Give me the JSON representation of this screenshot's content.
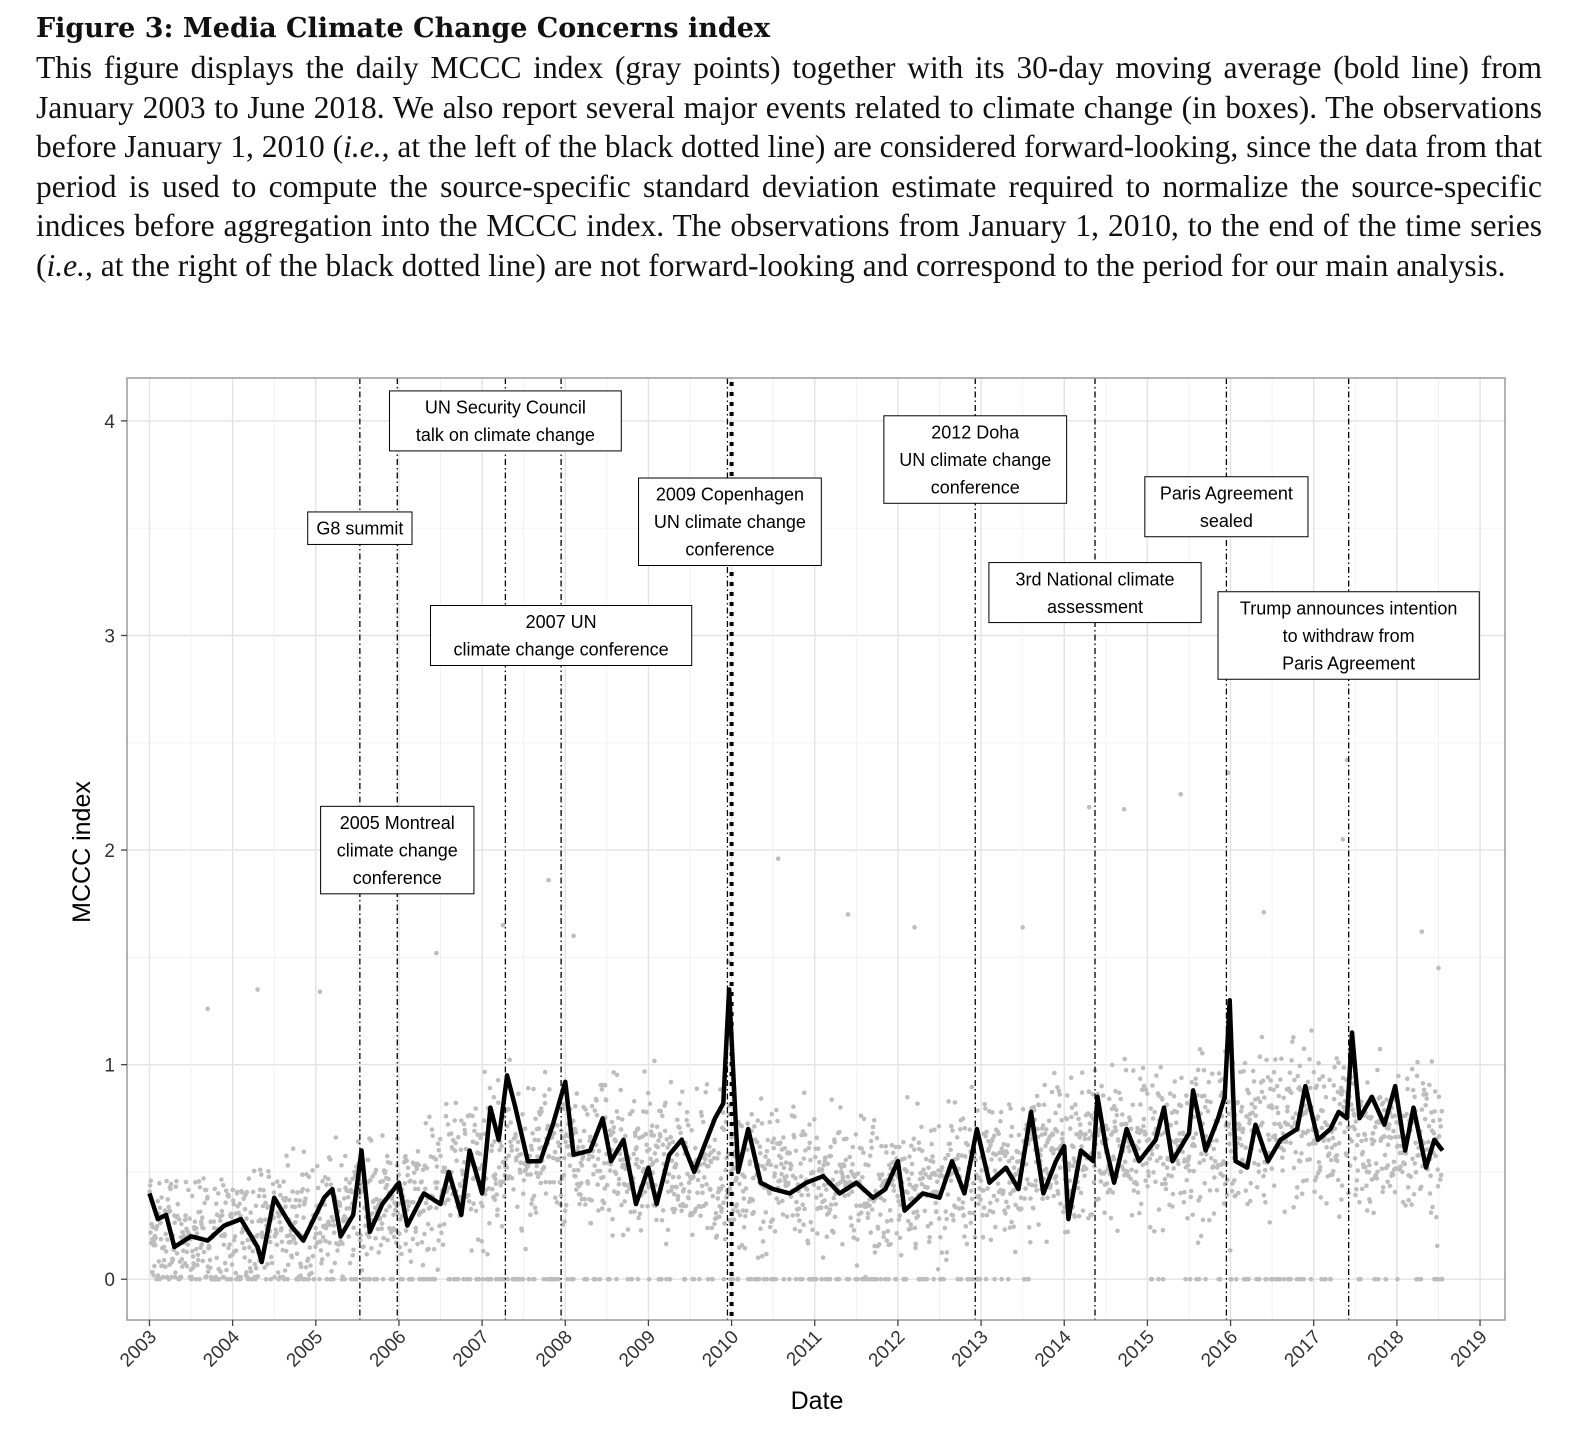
{
  "caption": {
    "title": "Figure 3: Media Climate Change Concerns index",
    "text_before_ie1": "This figure displays the daily MCCC index (gray points) together with its 30-day moving average (bold line) from January 2003 to June 2018. We also report several major events related to climate change (in boxes). The observations before January 1, 2010 (",
    "ie": "i.e.",
    "text_between": ", at the left of the black dotted line) are considered forward-looking, since the data from that period is used to compute the source-specific standard deviation estimate required to normalize the source-specific indices before aggregation into the MCCC index. The observations from January 1, 2010, to the end of the time series (",
    "text_after_ie2": ", at the right of the black dotted line) are not forward-looking and correspond to the period for our main analysis."
  },
  "chart_data": {
    "type": "scatter",
    "xlabel": "Date",
    "ylabel": "MCCC index",
    "xlim": [
      2002.73,
      2019.3
    ],
    "ylim": [
      -0.19,
      4.2
    ],
    "x_ticks": [
      "2003",
      "2004",
      "2005",
      "2006",
      "2007",
      "2008",
      "2009",
      "2010",
      "2011",
      "2012",
      "2013",
      "2014",
      "2015",
      "2016",
      "2017",
      "2018",
      "2019"
    ],
    "y_ticks": [
      0,
      1,
      2,
      3,
      4
    ],
    "grid": true,
    "series": [
      {
        "name": "daily MCCC index",
        "style": "gray points",
        "color": "#bdbdbd",
        "baseline_by_year": [
          [
            2003,
            0.2
          ],
          [
            2004,
            0.22
          ],
          [
            2005,
            0.28
          ],
          [
            2006,
            0.35
          ],
          [
            2007,
            0.55
          ],
          [
            2008,
            0.6
          ],
          [
            2009,
            0.55
          ],
          [
            2010,
            0.5
          ],
          [
            2011,
            0.45
          ],
          [
            2012,
            0.42
          ],
          [
            2013,
            0.5
          ],
          [
            2014,
            0.6
          ],
          [
            2015,
            0.65
          ],
          [
            2016,
            0.65
          ],
          [
            2017,
            0.75
          ],
          [
            2018,
            0.65
          ]
        ],
        "highlighted_points": [
          [
            2003.7,
            1.26
          ],
          [
            2004.3,
            1.35
          ],
          [
            2005.05,
            1.34
          ],
          [
            2006.45,
            1.52
          ],
          [
            2007.25,
            1.65
          ],
          [
            2007.8,
            1.86
          ],
          [
            2008.1,
            1.6
          ],
          [
            2009.96,
            1.48
          ],
          [
            2010.56,
            1.96
          ],
          [
            2011.4,
            1.7
          ],
          [
            2012.2,
            1.64
          ],
          [
            2013.5,
            1.64
          ],
          [
            2014.3,
            2.2
          ],
          [
            2014.72,
            2.19
          ],
          [
            2015.4,
            2.26
          ],
          [
            2015.97,
            2.36
          ],
          [
            2016.4,
            1.71
          ],
          [
            2017.35,
            2.05
          ],
          [
            2017.4,
            2.42
          ],
          [
            2018.3,
            1.62
          ],
          [
            2018.5,
            1.45
          ]
        ]
      },
      {
        "name": "30-day moving average",
        "style": "bold line",
        "color": "#000000",
        "points": [
          [
            2003.0,
            0.4
          ],
          [
            2003.1,
            0.28
          ],
          [
            2003.2,
            0.3
          ],
          [
            2003.3,
            0.15
          ],
          [
            2003.5,
            0.2
          ],
          [
            2003.7,
            0.18
          ],
          [
            2003.9,
            0.25
          ],
          [
            2004.1,
            0.28
          ],
          [
            2004.3,
            0.15
          ],
          [
            2004.35,
            0.08
          ],
          [
            2004.5,
            0.38
          ],
          [
            2004.7,
            0.25
          ],
          [
            2004.85,
            0.18
          ],
          [
            2005.0,
            0.3
          ],
          [
            2005.1,
            0.38
          ],
          [
            2005.2,
            0.42
          ],
          [
            2005.3,
            0.2
          ],
          [
            2005.45,
            0.3
          ],
          [
            2005.55,
            0.6
          ],
          [
            2005.65,
            0.22
          ],
          [
            2005.8,
            0.35
          ],
          [
            2006.0,
            0.45
          ],
          [
            2006.1,
            0.25
          ],
          [
            2006.3,
            0.4
          ],
          [
            2006.5,
            0.35
          ],
          [
            2006.6,
            0.5
          ],
          [
            2006.75,
            0.3
          ],
          [
            2006.85,
            0.6
          ],
          [
            2007.0,
            0.4
          ],
          [
            2007.1,
            0.8
          ],
          [
            2007.2,
            0.65
          ],
          [
            2007.3,
            0.95
          ],
          [
            2007.4,
            0.8
          ],
          [
            2007.55,
            0.55
          ],
          [
            2007.7,
            0.55
          ],
          [
            2007.85,
            0.72
          ],
          [
            2008.0,
            0.92
          ],
          [
            2008.1,
            0.58
          ],
          [
            2008.3,
            0.6
          ],
          [
            2008.45,
            0.75
          ],
          [
            2008.55,
            0.55
          ],
          [
            2008.7,
            0.65
          ],
          [
            2008.85,
            0.35
          ],
          [
            2009.0,
            0.52
          ],
          [
            2009.1,
            0.35
          ],
          [
            2009.25,
            0.58
          ],
          [
            2009.4,
            0.65
          ],
          [
            2009.55,
            0.5
          ],
          [
            2009.65,
            0.6
          ],
          [
            2009.8,
            0.75
          ],
          [
            2009.9,
            0.82
          ],
          [
            2009.97,
            1.35
          ],
          [
            2010.08,
            0.5
          ],
          [
            2010.2,
            0.7
          ],
          [
            2010.35,
            0.45
          ],
          [
            2010.5,
            0.42
          ],
          [
            2010.7,
            0.4
          ],
          [
            2010.9,
            0.45
          ],
          [
            2011.1,
            0.48
          ],
          [
            2011.3,
            0.4
          ],
          [
            2011.5,
            0.45
          ],
          [
            2011.7,
            0.38
          ],
          [
            2011.85,
            0.42
          ],
          [
            2012.0,
            0.55
          ],
          [
            2012.08,
            0.32
          ],
          [
            2012.3,
            0.4
          ],
          [
            2012.5,
            0.38
          ],
          [
            2012.65,
            0.55
          ],
          [
            2012.8,
            0.4
          ],
          [
            2012.95,
            0.7
          ],
          [
            2013.1,
            0.45
          ],
          [
            2013.3,
            0.52
          ],
          [
            2013.45,
            0.42
          ],
          [
            2013.6,
            0.78
          ],
          [
            2013.75,
            0.4
          ],
          [
            2013.9,
            0.55
          ],
          [
            2014.0,
            0.62
          ],
          [
            2014.05,
            0.28
          ],
          [
            2014.2,
            0.6
          ],
          [
            2014.35,
            0.55
          ],
          [
            2014.4,
            0.85
          ],
          [
            2014.5,
            0.62
          ],
          [
            2014.6,
            0.45
          ],
          [
            2014.75,
            0.7
          ],
          [
            2014.9,
            0.55
          ],
          [
            2015.1,
            0.65
          ],
          [
            2015.2,
            0.8
          ],
          [
            2015.3,
            0.55
          ],
          [
            2015.5,
            0.68
          ],
          [
            2015.55,
            0.88
          ],
          [
            2015.7,
            0.6
          ],
          [
            2015.85,
            0.75
          ],
          [
            2015.93,
            0.85
          ],
          [
            2015.99,
            1.3
          ],
          [
            2016.06,
            0.55
          ],
          [
            2016.2,
            0.52
          ],
          [
            2016.3,
            0.72
          ],
          [
            2016.45,
            0.55
          ],
          [
            2016.6,
            0.65
          ],
          [
            2016.8,
            0.7
          ],
          [
            2016.9,
            0.9
          ],
          [
            2017.05,
            0.65
          ],
          [
            2017.2,
            0.7
          ],
          [
            2017.3,
            0.78
          ],
          [
            2017.4,
            0.75
          ],
          [
            2017.46,
            1.15
          ],
          [
            2017.55,
            0.75
          ],
          [
            2017.7,
            0.85
          ],
          [
            2017.85,
            0.72
          ],
          [
            2017.98,
            0.9
          ],
          [
            2018.1,
            0.6
          ],
          [
            2018.2,
            0.8
          ],
          [
            2018.35,
            0.52
          ],
          [
            2018.45,
            0.65
          ],
          [
            2018.55,
            0.6
          ]
        ]
      }
    ],
    "vertical_lines": [
      {
        "x": 2005.53,
        "style": "dotdash"
      },
      {
        "x": 2005.98,
        "style": "dotdash"
      },
      {
        "x": 2007.28,
        "style": "dotdash"
      },
      {
        "x": 2007.95,
        "style": "dotdash"
      },
      {
        "x": 2009.95,
        "style": "dotdash"
      },
      {
        "x": 2010.0,
        "style": "dotted-bold"
      },
      {
        "x": 2012.93,
        "style": "dotdash"
      },
      {
        "x": 2014.37,
        "style": "dotdash"
      },
      {
        "x": 2015.95,
        "style": "dotdash"
      },
      {
        "x": 2017.42,
        "style": "dotdash"
      }
    ],
    "annotations": [
      {
        "lines": [
          "G8 summit"
        ],
        "x": 2005.53,
        "y": 3.5
      },
      {
        "lines": [
          "UN Security Council",
          "talk on climate change"
        ],
        "x": 2007.28,
        "y": 4.0
      },
      {
        "lines": [
          "2007 UN",
          "climate change conference"
        ],
        "x": 2007.95,
        "y": 3.0
      },
      {
        "lines": [
          "2009 Copenhagen",
          "UN climate change",
          "conference"
        ],
        "x": 2009.98,
        "y": 3.53
      },
      {
        "lines": [
          "2005 Montreal",
          "climate change",
          "conference"
        ],
        "x": 2005.98,
        "y": 2.0
      },
      {
        "lines": [
          "2012 Doha",
          "UN climate change",
          "conference"
        ],
        "x": 2012.93,
        "y": 3.82
      },
      {
        "lines": [
          "3rd National climate",
          "assessment"
        ],
        "x": 2014.37,
        "y": 3.2
      },
      {
        "lines": [
          "Paris Agreement",
          "sealed"
        ],
        "x": 2015.95,
        "y": 3.6
      },
      {
        "lines": [
          "Trump announces intention",
          "to withdraw from",
          "Paris Agreement"
        ],
        "x": 2017.42,
        "y": 3.0
      }
    ]
  }
}
